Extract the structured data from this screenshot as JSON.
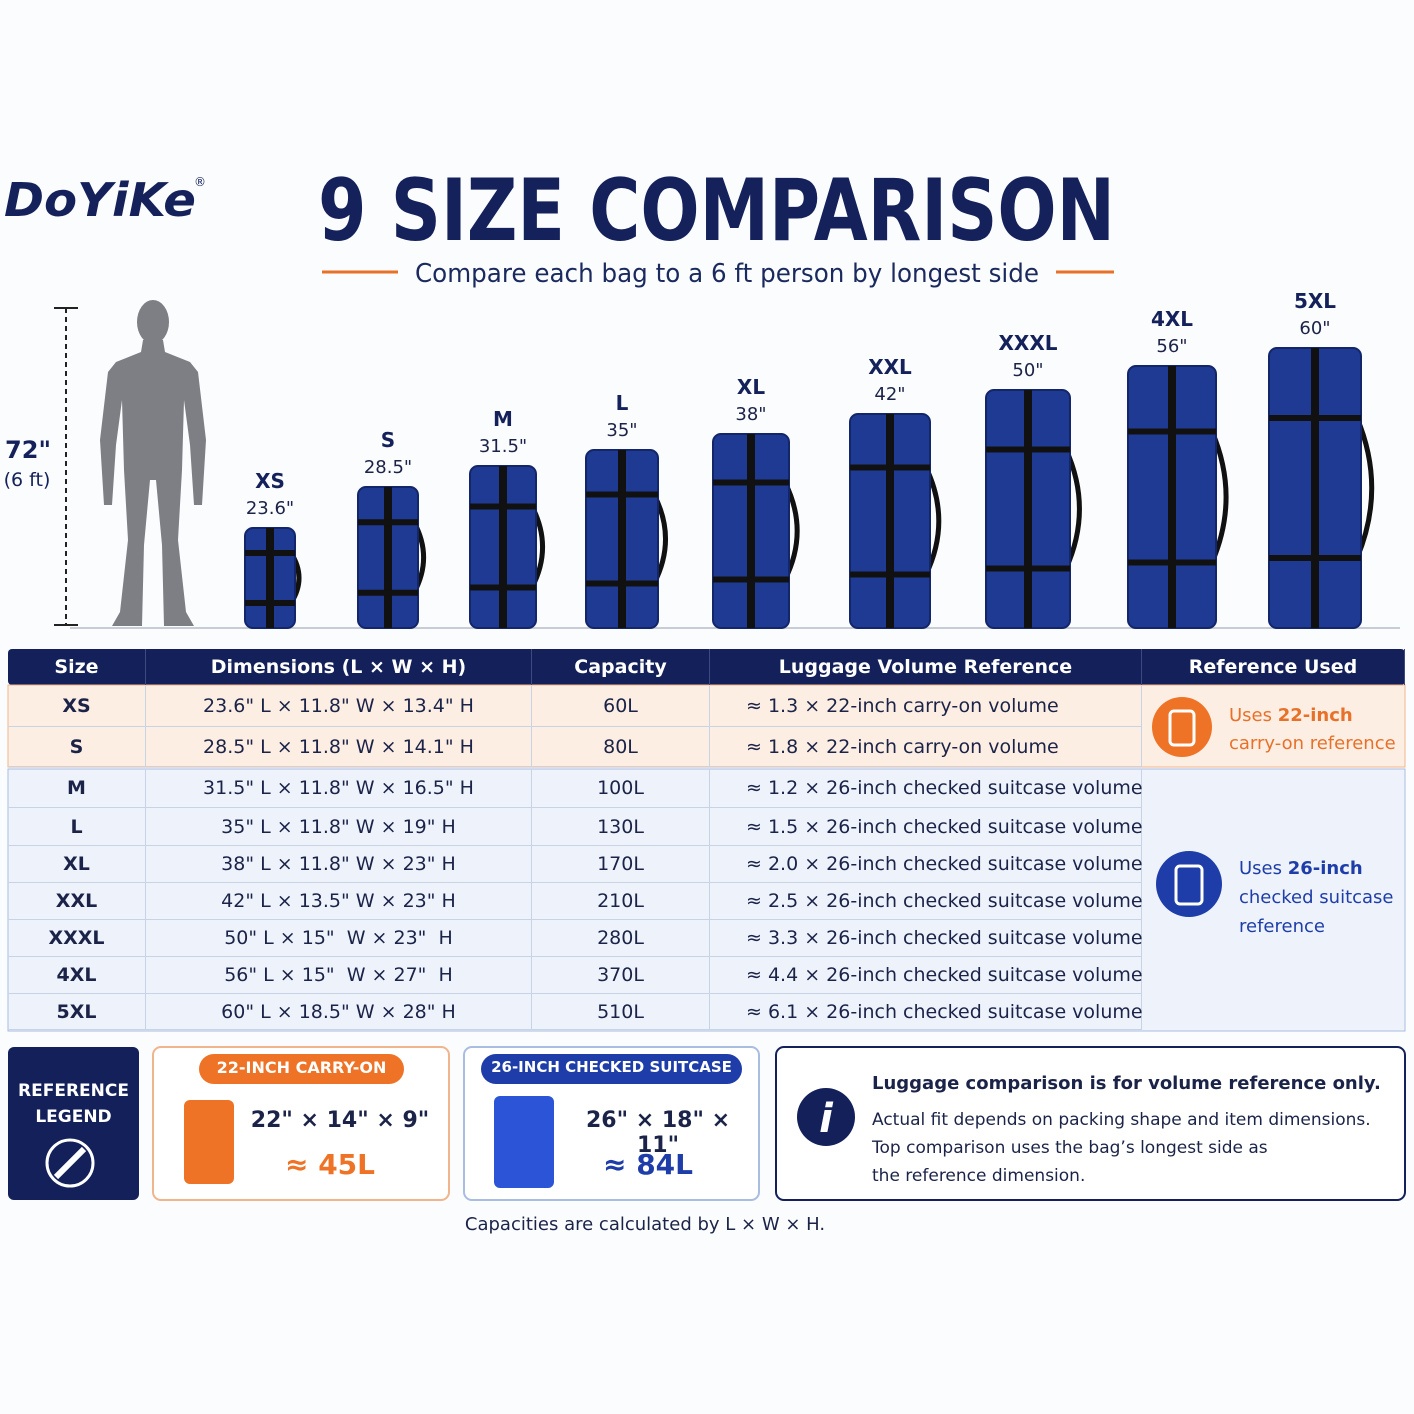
{
  "brand": "DoYiKe",
  "brand_mark": "®",
  "header": {
    "title": "9 SIZE COMPARISON",
    "subtitle": "Compare each bag to a 6 ft person by longest side"
  },
  "person": {
    "height": "72\"",
    "height_ft": "(6 ft)"
  },
  "bags": [
    {
      "size": "XS",
      "length": "23.6\""
    },
    {
      "size": "S",
      "length": "28.5\""
    },
    {
      "size": "M",
      "length": "31.5\""
    },
    {
      "size": "L",
      "length": "35\""
    },
    {
      "size": "XL",
      "length": "38\""
    },
    {
      "size": "XXL",
      "length": "42\""
    },
    {
      "size": "XXXL",
      "length": "50\""
    },
    {
      "size": "4XL",
      "length": "56\""
    },
    {
      "size": "5XL",
      "length": "60\""
    }
  ],
  "table": {
    "columns": [
      "Size",
      "Dimensions (L × W × H)",
      "Capacity",
      "Luggage Volume Reference",
      "Reference Used"
    ],
    "rows": [
      [
        "XS",
        "23.6\" L × 11.8\" W × 13.4\" H",
        "60L",
        "≈ 1.3 × 22-inch carry-on volume"
      ],
      [
        "S",
        "28.5\" L × 11.8\" W × 14.1\" H",
        "80L",
        "≈ 1.8 × 22-inch carry-on volume"
      ],
      [
        "M",
        "31.5\" L × 11.8\" W × 16.5\" H",
        "100L",
        "≈ 1.2 × 26-inch checked suitcase volume"
      ],
      [
        "L",
        "35\" L × 11.8\" W × 19\" H",
        "130L",
        "≈ 1.5 × 26-inch checked suitcase volume"
      ],
      [
        "XL",
        "38\" L × 11.8\" W × 23\" H",
        "170L",
        "≈ 2.0 × 26-inch checked suitcase volume"
      ],
      [
        "XXL",
        "42\" L × 13.5\" W × 23\" H",
        "210L",
        "≈ 2.5 × 26-inch checked suitcase volume"
      ],
      [
        "XXXL",
        "50\" L × 15\"  W × 23\"  H",
        "280L",
        "≈ 3.3 × 26-inch checked suitcase volume"
      ],
      [
        "4XL",
        "56\" L × 15\"  W × 27\"  H",
        "370L",
        "≈ 4.4 × 26-inch checked suitcase volume"
      ],
      [
        "5XL",
        "60\" L × 18.5\" W × 28\" H",
        "510L",
        "≈ 6.1 × 26-inch checked suitcase volume"
      ]
    ]
  },
  "reference": {
    "carry_on": {
      "prefix": "Uses ",
      "highlight": "22-inch",
      "suffix": "carry-on reference"
    },
    "checked": {
      "prefix": "Uses ",
      "highlight": "26-inch",
      "suffix": "checked suitcase reference"
    }
  },
  "legend": {
    "title": "REFERENCE LEGEND",
    "carry_on": {
      "badge": "22-INCH CARRY-ON",
      "dims": "22\" × 14\" × 9\"",
      "volume": "≈ 45L"
    },
    "checked": {
      "badge": "26-INCH CHECKED SUITCASE",
      "dims": "26\" × 18\" × 11\"",
      "volume": "≈ 84L"
    }
  },
  "note": {
    "title": "Luggage comparison is for volume reference only.",
    "lines": [
      "Actual fit depends on packing shape and item dimensions.",
      "Top comparison uses the bag’s longest side as",
      "the reference dimension."
    ]
  },
  "footnote": "Capacities are calculated by L × W × H."
}
